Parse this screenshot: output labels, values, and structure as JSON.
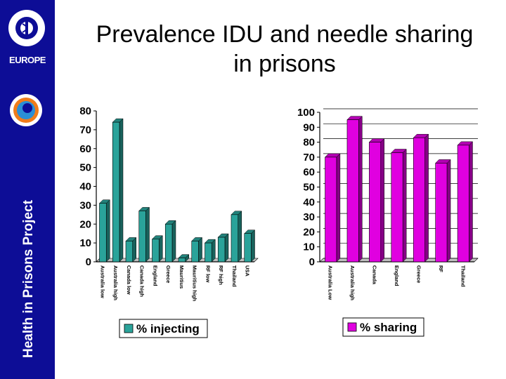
{
  "slide": {
    "title_line1": "Prevalence IDU and needle sharing",
    "title_line2": "in prisons",
    "sidebar_label": "Health in Prisons Project",
    "logo_text": "EUROPE"
  },
  "colors": {
    "sidebar": "#0d0d96",
    "injecting": "#2aa39a",
    "sharing": "#e000e0"
  },
  "chart_data": [
    {
      "type": "bar",
      "categories": [
        "Australia low",
        "Australia high",
        "Canada low",
        "Canada high",
        "England",
        "Greece",
        "Mauritius",
        "Mauritius high",
        "RF low",
        "RF high",
        "Thailand",
        "USA"
      ],
      "series": [
        {
          "name": "% injecting",
          "values": [
            31,
            74,
            11,
            27,
            12,
            20,
            2,
            11,
            10,
            13,
            25,
            15
          ]
        }
      ],
      "ylim": [
        0,
        80
      ],
      "yticks": [
        "0",
        "10",
        "20",
        "30",
        "40",
        "50",
        "60",
        "70",
        "80"
      ],
      "legend": "bottom",
      "grid": false
    },
    {
      "type": "bar",
      "categories": [
        "Australia Low",
        "Australia high",
        "Canada",
        "England",
        "Greece",
        "RF",
        "Thailand"
      ],
      "series": [
        {
          "name": "% sharing",
          "values": [
            70,
            95,
            80,
            73,
            83,
            66,
            78
          ]
        }
      ],
      "ylim": [
        0,
        100
      ],
      "yticks": [
        "0",
        "10",
        "20",
        "30",
        "40",
        "50",
        "60",
        "70",
        "80",
        "90",
        "100"
      ],
      "legend": "bottom",
      "grid": true
    }
  ]
}
